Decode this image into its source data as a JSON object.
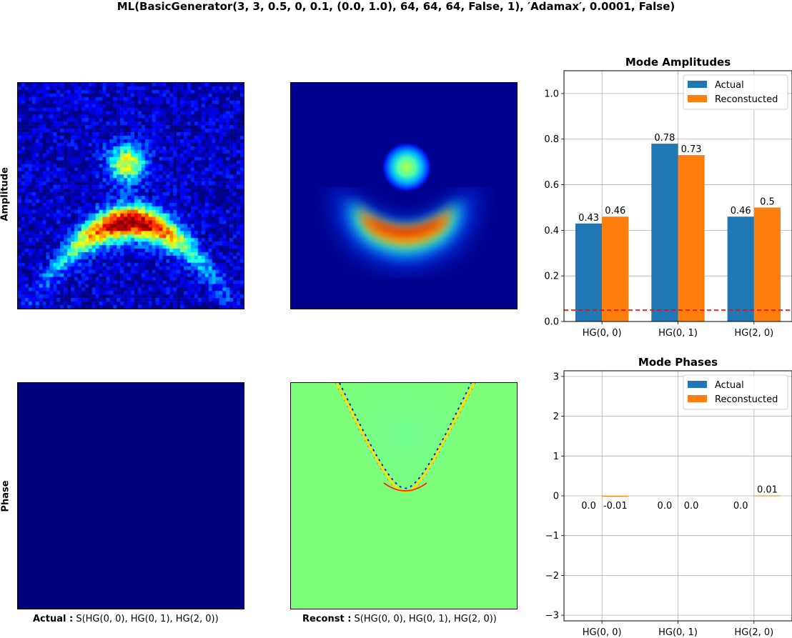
{
  "suptitle": "ML(BasicGenerator(3, 3, 0.5, 0, 0.1, (0.0, 1.0), 64, 64, 64, False, 1), ′Adamax′, 0.0001, False)",
  "row_labels": {
    "amplitude": "Amplitude",
    "phase": "Phase"
  },
  "captions": {
    "actual_bold": "Actual :",
    "actual_rest": " S(HG(0, 0), HG(0, 1), HG(2, 0))",
    "recon_bold": "Reconst :",
    "recon_rest": " S(HG(0, 0), HG(0, 1), HG(2, 0))"
  },
  "colors": {
    "actual": "#1f77b4",
    "reconstructed": "#ff7f0e",
    "threshold": "#ff0000",
    "grid": "#b0b0b0",
    "jet_low": "#00007f",
    "jet_mid": "#7dff7a"
  },
  "chart_data": [
    {
      "type": "bar",
      "title": "Mode Amplitudes",
      "categories": [
        "HG(0, 0)",
        "HG(0, 1)",
        "HG(2, 0)"
      ],
      "series": [
        {
          "name": "Actual",
          "values": [
            0.43,
            0.78,
            0.46
          ],
          "labels": [
            "0.43",
            "0.78",
            "0.46"
          ]
        },
        {
          "name": "Reconstucted",
          "values": [
            0.46,
            0.73,
            0.5
          ],
          "labels": [
            "0.46",
            "0.73",
            "0.5"
          ]
        }
      ],
      "ylim": [
        0,
        1.1
      ],
      "yticks": [
        0.0,
        0.2,
        0.4,
        0.6,
        0.8,
        1.0
      ],
      "ytick_labels": [
        "0.0",
        "0.2",
        "0.4",
        "0.6",
        "0.8",
        "1.0"
      ],
      "threshold": 0.05,
      "grid": true,
      "legend": "top-right"
    },
    {
      "type": "bar",
      "title": "Mode Phases",
      "categories": [
        "HG(0, 0)",
        "HG(0, 1)",
        "HG(2, 0)"
      ],
      "series": [
        {
          "name": "Actual",
          "values": [
            0.0,
            0.0,
            0.0
          ],
          "labels": [
            "0.0",
            "0.0",
            "0.0"
          ]
        },
        {
          "name": "Reconstucted",
          "values": [
            -0.01,
            0.0,
            0.01
          ],
          "labels": [
            "-0.01",
            "0.0",
            "0.01"
          ]
        }
      ],
      "ylim": [
        -3.14159,
        3.14159
      ],
      "yticks": [
        -3,
        -2,
        -1,
        0,
        1,
        2,
        3
      ],
      "ytick_labels": [
        "−3",
        "−2",
        "−1",
        "0",
        "1",
        "2",
        "3"
      ],
      "grid": true,
      "legend": "top-right"
    }
  ]
}
